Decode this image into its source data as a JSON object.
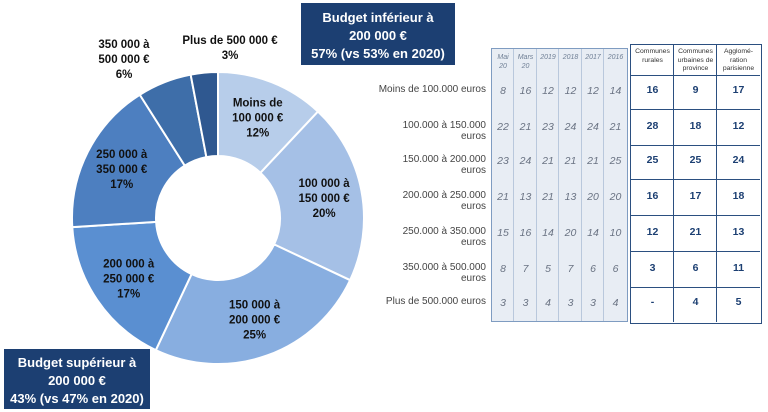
{
  "chart_data": [
    {
      "type": "pie",
      "donut": true,
      "slices": [
        {
          "label_lines": [
            "Moins de",
            "100 000 €"
          ],
          "pct_label": "12%",
          "value": 12,
          "color": "#b7cdea"
        },
        {
          "label_lines": [
            "100 000 à",
            "150 000 €"
          ],
          "pct_label": "20%",
          "value": 20,
          "color": "#a5c0e6"
        },
        {
          "label_lines": [
            "150 000 à",
            "200 000 €"
          ],
          "pct_label": "25%",
          "value": 25,
          "color": "#88aee0"
        },
        {
          "label_lines": [
            "200 000 à",
            "250 000 €"
          ],
          "pct_label": "17%",
          "value": 17,
          "color": "#5a8fd1"
        },
        {
          "label_lines": [
            "250 000 à",
            "350 000 €"
          ],
          "pct_label": "17%",
          "value": 17,
          "color": "#4d7fc0"
        },
        {
          "label_lines": [
            "350 000 à",
            "500 000 €"
          ],
          "pct_label": "6%",
          "value": 6,
          "color": "#3e6ea9"
        },
        {
          "label_lines": [
            "Plus de 500 000 €"
          ],
          "pct_label": "3%",
          "value": 3,
          "color": "#2f5890"
        }
      ],
      "callouts": {
        "top": [
          "Budget inférieur à",
          "200 000 €",
          "57% (vs 53% en 2020)"
        ],
        "bottom": [
          "Budget supérieur à",
          "200 000 €",
          "43% (vs 47% en 2020)"
        ]
      }
    },
    {
      "type": "table",
      "row_labels": [
        "Moins de 100.000 euros",
        "100.000 à 150.000 euros",
        "150.000 à 200.000 euros",
        "200.000 à 250.000 euros",
        "250.000 à 350.000 euros",
        "350.000 à 500.000 euros",
        "Plus de 500.000 euros"
      ],
      "history_columns": [
        {
          "header": [
            "Mai",
            "20"
          ],
          "values": [
            "8",
            "22",
            "23",
            "21",
            "15",
            "8",
            "3"
          ]
        },
        {
          "header": [
            "Mars",
            "20"
          ],
          "values": [
            "16",
            "21",
            "24",
            "13",
            "16",
            "7",
            "3"
          ]
        },
        {
          "header": [
            "2019"
          ],
          "values": [
            "12",
            "23",
            "21",
            "21",
            "14",
            "5",
            "4"
          ]
        },
        {
          "header": [
            "2018"
          ],
          "values": [
            "12",
            "24",
            "21",
            "13",
            "20",
            "7",
            "3"
          ]
        },
        {
          "header": [
            "2017"
          ],
          "values": [
            "12",
            "24",
            "21",
            "20",
            "14",
            "6",
            "3"
          ]
        },
        {
          "header": [
            "2016"
          ],
          "values": [
            "14",
            "21",
            "25",
            "20",
            "10",
            "6",
            "4"
          ]
        }
      ],
      "commune_columns": [
        {
          "header": [
            "Communes",
            "rurales"
          ],
          "values": [
            "16",
            "28",
            "25",
            "16",
            "12",
            "3",
            "-"
          ]
        },
        {
          "header": [
            "Communes",
            "urbaines de",
            "province"
          ],
          "values": [
            "9",
            "18",
            "25",
            "17",
            "21",
            "6",
            "4"
          ]
        },
        {
          "header": [
            "Agglomé-",
            "ration",
            "parisienne"
          ],
          "values": [
            "17",
            "12",
            "24",
            "18",
            "13",
            "11",
            "5"
          ]
        }
      ]
    }
  ]
}
